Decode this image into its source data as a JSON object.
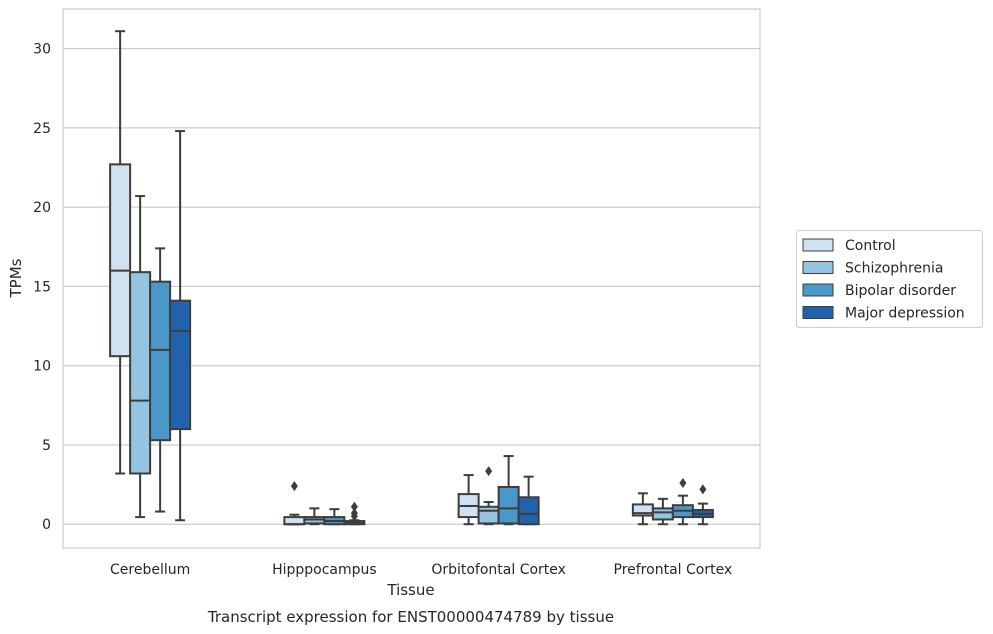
{
  "chart_data": {
    "type": "box",
    "title": "",
    "caption": "Transcript expression for ENST00000474789 by tissue",
    "xlabel": "Tissue",
    "ylabel": "TPMs",
    "ylim": [
      -1.5,
      32.5
    ],
    "yticks": [
      0,
      5,
      10,
      15,
      20,
      25,
      30
    ],
    "grid": "horizontal",
    "legend_placement": "right",
    "categories": [
      "Cerebellum",
      "Hipppocampus",
      "Orbitofontal Cortex",
      "Prefrontal Cortex"
    ],
    "series": [
      {
        "name": "Control",
        "color": "#d0e1f2",
        "boxes": [
          {
            "min": 3.2,
            "q1": 10.6,
            "median": 16.0,
            "q3": 22.7,
            "max": 31.1,
            "outliers": []
          },
          {
            "min": 0.0,
            "q1": 0.0,
            "median": 0.0,
            "q3": 0.45,
            "max": 0.6,
            "outliers": [
              2.4
            ]
          },
          {
            "min": 0.0,
            "q1": 0.45,
            "median": 1.15,
            "q3": 1.9,
            "max": 3.1,
            "outliers": []
          },
          {
            "min": 0.0,
            "q1": 0.55,
            "median": 0.7,
            "q3": 1.25,
            "max": 1.95,
            "outliers": []
          }
        ]
      },
      {
        "name": "Schizophrenia",
        "color": "#94c4df",
        "boxes": [
          {
            "min": 0.45,
            "q1": 3.2,
            "median": 7.8,
            "q3": 15.9,
            "max": 20.7,
            "outliers": []
          },
          {
            "min": 0.0,
            "q1": 0.05,
            "median": 0.3,
            "q3": 0.45,
            "max": 1.0,
            "outliers": []
          },
          {
            "min": 0.0,
            "q1": 0.05,
            "median": 0.85,
            "q3": 1.1,
            "max": 1.4,
            "outliers": [
              3.35
            ]
          },
          {
            "min": 0.0,
            "q1": 0.3,
            "median": 0.75,
            "q3": 1.0,
            "max": 1.6,
            "outliers": []
          }
        ]
      },
      {
        "name": "Bipolar disorder",
        "color": "#4a98c9",
        "boxes": [
          {
            "min": 0.8,
            "q1": 5.3,
            "median": 11.0,
            "q3": 15.3,
            "max": 17.4,
            "outliers": []
          },
          {
            "min": 0.0,
            "q1": 0.0,
            "median": 0.2,
            "q3": 0.45,
            "max": 0.95,
            "outliers": []
          },
          {
            "min": 0.0,
            "q1": 0.05,
            "median": 1.0,
            "q3": 2.35,
            "max": 4.3,
            "outliers": []
          },
          {
            "min": 0.0,
            "q1": 0.45,
            "median": 0.85,
            "q3": 1.2,
            "max": 1.8,
            "outliers": [
              2.6
            ]
          }
        ]
      },
      {
        "name": "Major depression",
        "color": "#2163aa",
        "boxes": [
          {
            "min": 0.25,
            "q1": 6.0,
            "median": 12.2,
            "q3": 14.1,
            "max": 24.8,
            "outliers": []
          },
          {
            "min": 0.0,
            "q1": 0.0,
            "median": 0.1,
            "q3": 0.2,
            "max": 0.25,
            "outliers": [
              0.5,
              0.7,
              1.1
            ]
          },
          {
            "min": 0.0,
            "q1": 0.0,
            "median": 0.65,
            "q3": 1.7,
            "max": 3.0,
            "outliers": []
          },
          {
            "min": 0.0,
            "q1": 0.45,
            "median": 0.65,
            "q3": 0.9,
            "max": 1.3,
            "outliers": [
              2.2
            ]
          }
        ]
      }
    ]
  }
}
